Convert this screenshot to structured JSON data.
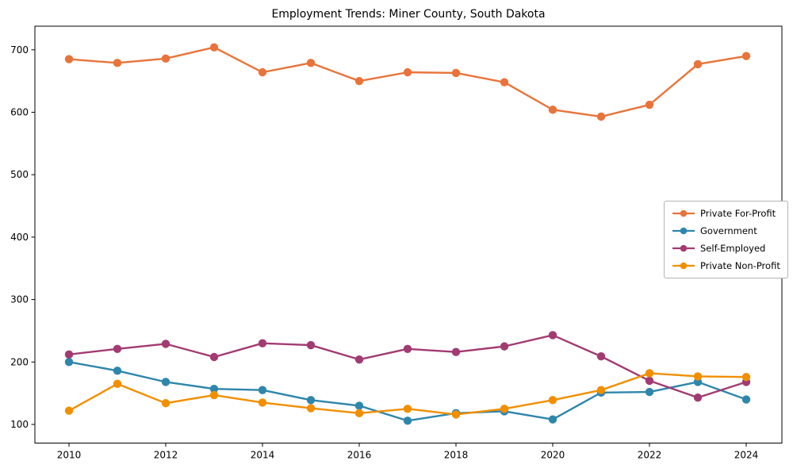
{
  "chart_data": {
    "type": "line",
    "title": "Employment Trends: Miner County, South Dakota",
    "xlabel": "",
    "ylabel": "",
    "grid": false,
    "background": "#ffffff",
    "axis_color": "#000000",
    "legend_position": "center right",
    "xlim": [
      2009.3,
      2024.7
    ],
    "ylim": [
      70,
      738
    ],
    "x": [
      2010,
      2011,
      2012,
      2013,
      2014,
      2015,
      2016,
      2017,
      2018,
      2019,
      2020,
      2021,
      2022,
      2023,
      2024
    ],
    "x_ticks": [
      2010,
      2012,
      2014,
      2016,
      2018,
      2020,
      2022,
      2024
    ],
    "y_ticks": [
      100,
      200,
      300,
      400,
      500,
      600,
      700
    ],
    "series": [
      {
        "name": "Private For-Profit",
        "color": "#E8743B",
        "values": [
          685,
          679,
          686,
          704,
          664,
          679,
          650,
          664,
          663,
          648,
          604,
          593,
          612,
          677,
          690
        ]
      },
      {
        "name": "Government",
        "color": "#2E86AB",
        "values": [
          200,
          186,
          168,
          157,
          155,
          139,
          130,
          106,
          118,
          121,
          108,
          151,
          152,
          168,
          140
        ]
      },
      {
        "name": "Self-Employed",
        "color": "#A23B72",
        "values": [
          212,
          221,
          229,
          208,
          230,
          227,
          204,
          221,
          216,
          225,
          243,
          209,
          170,
          143,
          168
        ]
      },
      {
        "name": "Private Non-Profit",
        "color": "#F18F01",
        "values": [
          122,
          165,
          134,
          147,
          135,
          126,
          118,
          125,
          116,
          125,
          139,
          155,
          182,
          177,
          176
        ]
      }
    ]
  }
}
